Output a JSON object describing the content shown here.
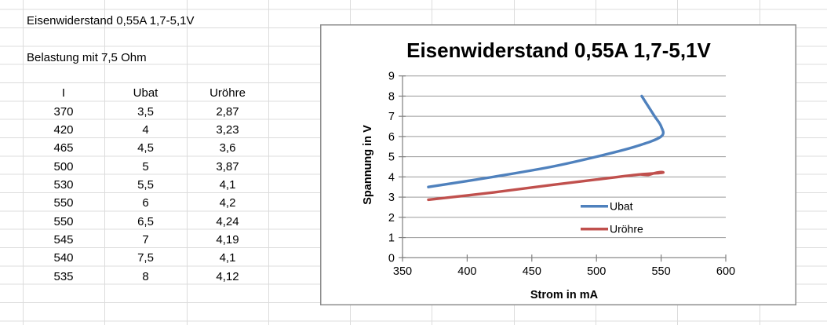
{
  "sheet": {
    "cells": {
      "title": "Eisenwiderstand 0,55A 1,7-5,1V",
      "subtitle": "Belastung mit 7,5 Ohm"
    },
    "table": {
      "headers": [
        "I",
        "Ubat",
        "Uröhre"
      ],
      "rows": [
        [
          "370",
          "3,5",
          "2,87"
        ],
        [
          "420",
          "4",
          "3,23"
        ],
        [
          "465",
          "4,5",
          "3,6"
        ],
        [
          "500",
          "5",
          "3,87"
        ],
        [
          "530",
          "5,5",
          "4,1"
        ],
        [
          "550",
          "6",
          "4,2"
        ],
        [
          "550",
          "6,5",
          "4,24"
        ],
        [
          "545",
          "7",
          "4,19"
        ],
        [
          "540",
          "7,5",
          "4,1"
        ],
        [
          "535",
          "8",
          "4,12"
        ]
      ]
    }
  },
  "chart_data": {
    "type": "line",
    "title": "Eisenwiderstand 0,55A 1,7-5,1V",
    "xlabel": "Strom in mA",
    "ylabel": "Spannung in V",
    "xlim": [
      350,
      600
    ],
    "ylim": [
      0,
      9
    ],
    "x_ticks": [
      350,
      400,
      450,
      500,
      550,
      600
    ],
    "y_ticks": [
      0,
      1,
      2,
      3,
      4,
      5,
      6,
      7,
      8,
      9
    ],
    "grid": "horizontal-major",
    "legend_position": "inside-right",
    "smooth_lines": true,
    "x": [
      370,
      420,
      465,
      500,
      530,
      550,
      550,
      545,
      540,
      535
    ],
    "series": [
      {
        "name": "Ubat",
        "color": "#4F81BD",
        "values": [
          3.5,
          4,
          4.5,
          5,
          5.5,
          6,
          6.5,
          7,
          7.5,
          8
        ]
      },
      {
        "name": "Uröhre",
        "color": "#C0504D",
        "values": [
          2.87,
          3.23,
          3.6,
          3.87,
          4.1,
          4.2,
          4.24,
          4.19,
          4.1,
          4.12
        ]
      }
    ]
  }
}
